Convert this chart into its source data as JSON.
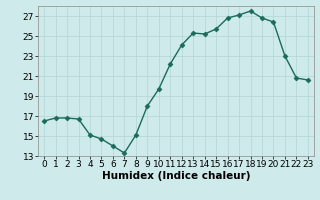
{
  "x": [
    0,
    1,
    2,
    3,
    4,
    5,
    6,
    7,
    8,
    9,
    10,
    11,
    12,
    13,
    14,
    15,
    16,
    17,
    18,
    19,
    20,
    21,
    22,
    23
  ],
  "y": [
    16.5,
    16.8,
    16.8,
    16.7,
    15.1,
    14.7,
    14.0,
    13.3,
    15.1,
    18.0,
    19.7,
    22.2,
    24.1,
    25.3,
    25.2,
    25.7,
    26.8,
    27.1,
    27.5,
    26.8,
    26.4,
    23.0,
    20.8,
    20.6
  ],
  "line_color": "#1a6b5a",
  "marker": "D",
  "markersize": 2.5,
  "linewidth": 1.0,
  "bg_color": "#ceeaea",
  "grid_color": "#b8d8d8",
  "xlabel": "Humidex (Indice chaleur)",
  "xlim": [
    -0.5,
    23.5
  ],
  "ylim": [
    13,
    28
  ],
  "yticks": [
    13,
    15,
    17,
    19,
    21,
    23,
    25,
    27
  ],
  "xticks": [
    0,
    1,
    2,
    3,
    4,
    5,
    6,
    7,
    8,
    9,
    10,
    11,
    12,
    13,
    14,
    15,
    16,
    17,
    18,
    19,
    20,
    21,
    22,
    23
  ],
  "xtick_labels": [
    "0",
    "1",
    "2",
    "3",
    "4",
    "5",
    "6",
    "7",
    "8",
    "9",
    "10",
    "11",
    "12",
    "13",
    "14",
    "15",
    "16",
    "17",
    "18",
    "19",
    "20",
    "21",
    "22",
    "23"
  ],
  "font_size": 6.5,
  "xlabel_fontsize": 7.5
}
